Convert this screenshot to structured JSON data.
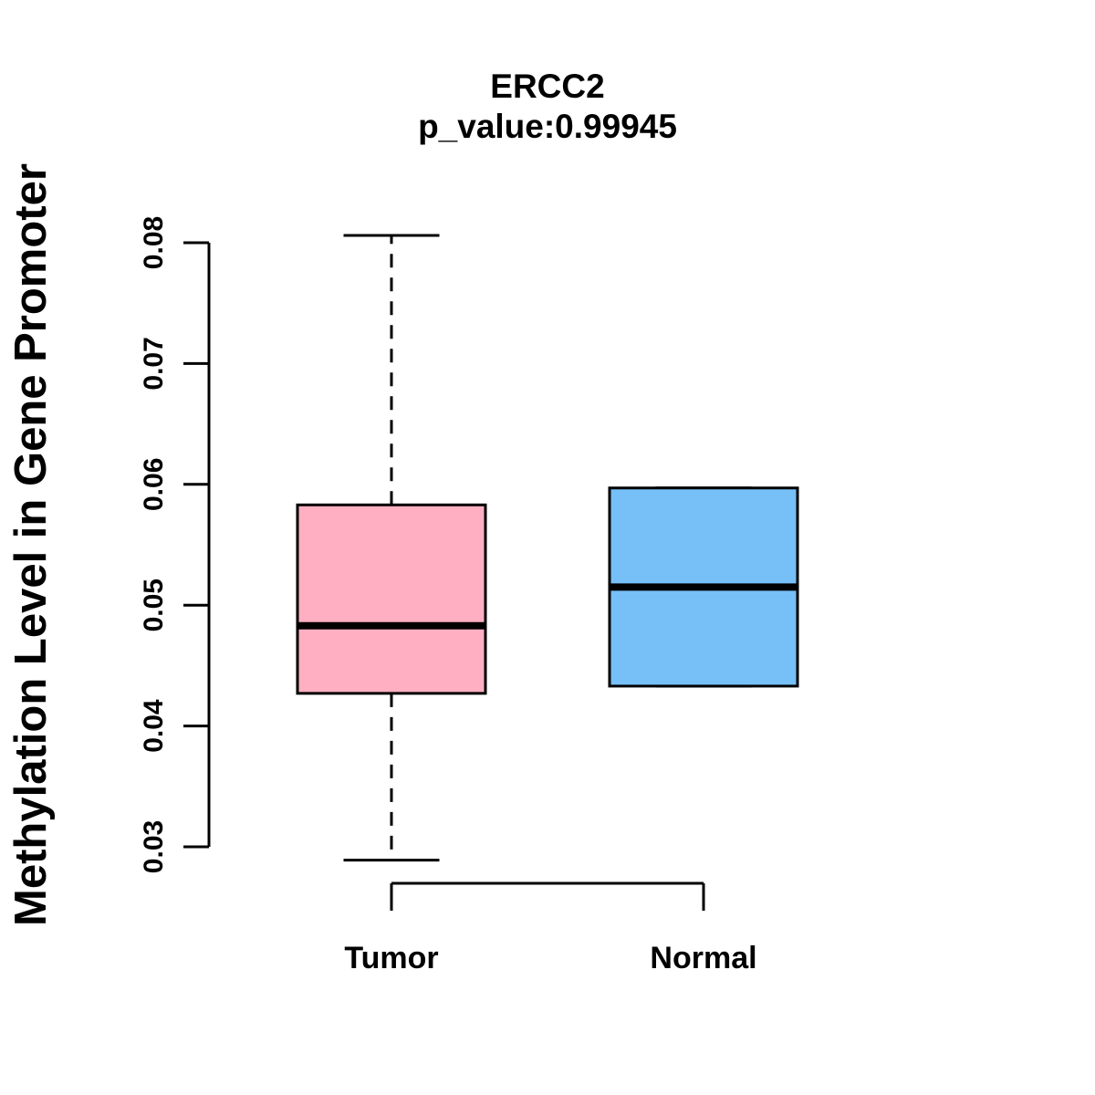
{
  "chart_data": {
    "type": "boxplot",
    "title": "ERCC2",
    "subtitle": "p_value:0.99945",
    "ylabel": "Methylation Level in Gene Promoter",
    "xlabel": "",
    "yticks": [
      0.03,
      0.04,
      0.05,
      0.06,
      0.07,
      0.08
    ],
    "ylim": [
      0.0289,
      0.0806
    ],
    "grid": false,
    "legend": "none",
    "groups": [
      {
        "label": "Tumor",
        "color": "#FFAFC1",
        "border_color": "#000000",
        "q1": 0.0427,
        "median": 0.0483,
        "q3": 0.0583,
        "whisker_low": 0.0289,
        "whisker_high": 0.0806
      },
      {
        "label": "Normal",
        "color": "#76BFF7",
        "border_color": "#000000",
        "q1": 0.0433,
        "median": 0.0515,
        "q3": 0.0597,
        "whisker_low": 0.0433,
        "whisker_high": 0.0597
      }
    ]
  }
}
